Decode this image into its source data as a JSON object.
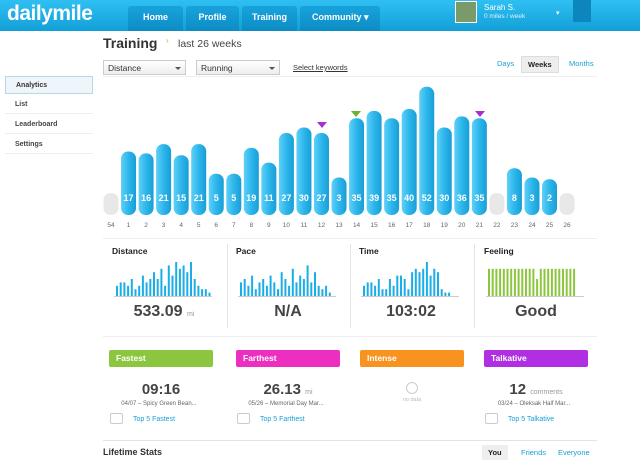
{
  "nav": {
    "logo": "dailymile",
    "tabs": [
      "Home",
      "Profile",
      "Training",
      "Community"
    ],
    "user_name": "Sarah S.",
    "user_stat": "0 miles / week"
  },
  "sidebar": [
    "Analytics",
    "List",
    "Leaderboard",
    "Settings"
  ],
  "header": {
    "title": "Training",
    "subtitle": "last 26 weeks",
    "filters": [
      "Distance",
      "Running"
    ],
    "keywords_link": "Select keywords",
    "periods": [
      "Days",
      "Weeks",
      "Months"
    ]
  },
  "chart_data": {
    "type": "bar",
    "categories": [
      "54",
      "1",
      "2",
      "3",
      "4",
      "5",
      "6",
      "7",
      "8",
      "9",
      "10",
      "11",
      "12",
      "13",
      "14",
      "15",
      "16",
      "17",
      "18",
      "19",
      "20",
      "21",
      "22",
      "23",
      "24",
      "25",
      "26"
    ],
    "values": [
      null,
      17,
      16,
      21,
      15,
      21,
      5,
      5,
      19,
      11,
      27,
      30,
      27,
      3,
      35,
      39,
      35,
      40,
      52,
      30,
      36,
      35,
      null,
      8,
      3,
      2,
      null
    ],
    "color": "#2db6ec"
  },
  "stats": [
    {
      "label": "Distance",
      "value": "533.09",
      "unit": "mi",
      "color": "#1aaee8",
      "spark": [
        3,
        4,
        4,
        3,
        5,
        2,
        3,
        6,
        4,
        5,
        7,
        5,
        8,
        3,
        9,
        6,
        10,
        8,
        9,
        7,
        10,
        5,
        3,
        2,
        2,
        1
      ]
    },
    {
      "label": "Pace",
      "value": "N/A",
      "color": "#1aaee8",
      "spark": [
        4,
        5,
        3,
        6,
        2,
        4,
        5,
        3,
        6,
        4,
        2,
        7,
        5,
        3,
        8,
        4,
        6,
        5,
        9,
        4,
        7,
        3,
        2,
        3,
        1
      ]
    },
    {
      "label": "Time",
      "value": "103:02",
      "color": "#1aaee8",
      "spark": [
        3,
        4,
        4,
        3,
        5,
        2,
        2,
        5,
        3,
        6,
        6,
        5,
        2,
        7,
        8,
        7,
        8,
        10,
        6,
        8,
        7,
        2,
        1,
        1
      ]
    },
    {
      "label": "Feeling",
      "value": "Good",
      "color": "#8cc63e",
      "spark": [
        8,
        8,
        8,
        8,
        8,
        8,
        8,
        8,
        8,
        8,
        8,
        8,
        8,
        5,
        8,
        8,
        8,
        8,
        8,
        8,
        8,
        8,
        8,
        8
      ]
    }
  ],
  "highlights": [
    {
      "label": "Fastest",
      "color": "#8cc63e",
      "value": "09:16",
      "detail": "04/07 – Spicy Green Bean...",
      "link": "Top 5 Fastest"
    },
    {
      "label": "Farthest",
      "color": "#ec2fc0",
      "value": "26.13",
      "unit": "mi",
      "detail": "05/26 – Memorial Day Mar...",
      "link": "Top 5 Farthest"
    },
    {
      "label": "Intense",
      "color": "#f7931e",
      "empty": "no data"
    },
    {
      "label": "Talkative",
      "color": "#b02fe3",
      "value": "12",
      "unit": "comments",
      "detail": "03/24 – Oleksak Half Mar...",
      "link": "Top 5 Talkative"
    }
  ],
  "lifetime": {
    "title": "Lifetime Stats",
    "scopes": [
      "You",
      "Friends",
      "Everyone"
    ]
  }
}
